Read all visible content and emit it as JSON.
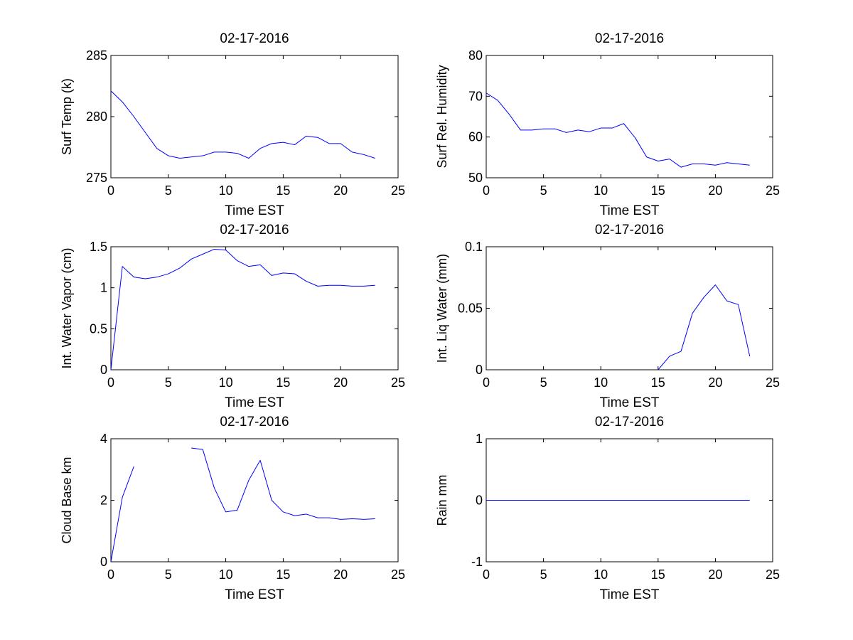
{
  "figure": {
    "background": "#ffffff",
    "line_color": "#0000ff",
    "axes_color": "#000000"
  },
  "chart_data": [
    {
      "type": "line",
      "id": "surf-temp",
      "title": "02-17-2016",
      "xlabel": "Time EST",
      "ylabel": "Surf Temp (k)",
      "xlim": [
        0,
        25
      ],
      "ylim": [
        275,
        285
      ],
      "xticks": [
        0,
        5,
        10,
        15,
        20,
        25
      ],
      "yticks": [
        275,
        280,
        285
      ],
      "series": [
        {
          "name": "Surf Temp (k)",
          "x": [
            0,
            1,
            2,
            3,
            4,
            5,
            6,
            7,
            8,
            9,
            10,
            11,
            12,
            13,
            14,
            15,
            16,
            17,
            18,
            19,
            20,
            21,
            22,
            23
          ],
          "y": [
            282.1,
            281.2,
            280.0,
            278.7,
            277.4,
            276.8,
            276.6,
            276.7,
            276.8,
            277.1,
            277.1,
            277.0,
            276.6,
            277.4,
            277.8,
            277.9,
            277.7,
            278.4,
            278.3,
            277.8,
            277.8,
            277.1,
            276.9,
            276.6
          ]
        }
      ]
    },
    {
      "type": "line",
      "id": "surf-rh",
      "title": "02-17-2016",
      "xlabel": "Time EST",
      "ylabel": "Surf Rel. Humidity",
      "xlim": [
        0,
        25
      ],
      "ylim": [
        50,
        80
      ],
      "xticks": [
        0,
        5,
        10,
        15,
        20,
        25
      ],
      "yticks": [
        50,
        60,
        70,
        80
      ],
      "series": [
        {
          "name": "Surf Rel. Humidity",
          "x": [
            0,
            1,
            2,
            3,
            4,
            5,
            6,
            7,
            8,
            9,
            10,
            11,
            12,
            13,
            14,
            15,
            16,
            17,
            18,
            19,
            20,
            21,
            22,
            23
          ],
          "y": [
            70.8,
            69.0,
            65.6,
            61.7,
            61.7,
            62.0,
            62.0,
            61.1,
            61.7,
            61.3,
            62.2,
            62.2,
            63.3,
            59.8,
            55.1,
            54.1,
            54.6,
            52.6,
            53.4,
            53.4,
            53.1,
            53.7,
            53.4,
            53.1
          ]
        }
      ]
    },
    {
      "type": "line",
      "id": "int-water-vapor",
      "title": "02-17-2016",
      "xlabel": "Time EST",
      "ylabel": "Int. Water Vapor (cm)",
      "xlim": [
        0,
        25
      ],
      "ylim": [
        0,
        1.5
      ],
      "xticks": [
        0,
        5,
        10,
        15,
        20,
        25
      ],
      "yticks": [
        0,
        0.5,
        1,
        1.5
      ],
      "series": [
        {
          "name": "Int. Water Vapor (cm)",
          "x": [
            0,
            1,
            2,
            3,
            4,
            5,
            6,
            7,
            8,
            9,
            10,
            11,
            12,
            13,
            14,
            15,
            16,
            17,
            18,
            19,
            20,
            21,
            22,
            23
          ],
          "y": [
            0.0,
            1.26,
            1.13,
            1.11,
            1.13,
            1.17,
            1.24,
            1.35,
            1.41,
            1.47,
            1.46,
            1.33,
            1.26,
            1.28,
            1.15,
            1.18,
            1.17,
            1.08,
            1.02,
            1.03,
            1.03,
            1.02,
            1.02,
            1.03
          ]
        }
      ]
    },
    {
      "type": "line",
      "id": "int-liq-water",
      "title": "02-17-2016",
      "xlabel": "Time EST",
      "ylabel": "Int. Liq Water (mm)",
      "xlim": [
        0,
        25
      ],
      "ylim": [
        0,
        0.1
      ],
      "xticks": [
        0,
        5,
        10,
        15,
        20,
        25
      ],
      "yticks": [
        0,
        0.05,
        0.1
      ],
      "series": [
        {
          "name": "Int. Liq Water (mm)",
          "x": [
            15,
            16,
            17,
            18,
            19,
            20,
            21,
            22,
            23
          ],
          "y": [
            0.0,
            0.011,
            0.015,
            0.046,
            0.059,
            0.069,
            0.056,
            0.053,
            0.011
          ]
        }
      ]
    },
    {
      "type": "line",
      "id": "cloud-base",
      "title": "02-17-2016",
      "xlabel": "Time EST",
      "ylabel": "Cloud Base km",
      "xlim": [
        0,
        25
      ],
      "ylim": [
        0,
        4
      ],
      "xticks": [
        0,
        5,
        10,
        15,
        20,
        25
      ],
      "yticks": [
        0,
        2,
        4
      ],
      "series": [
        {
          "name": "Cloud Base km",
          "x": [
            0,
            1,
            2,
            3,
            4,
            5,
            6,
            7,
            8,
            9,
            10,
            11,
            12,
            13,
            14,
            15,
            16,
            17,
            18,
            19,
            20,
            21,
            22,
            23
          ],
          "y": [
            0.0,
            2.1,
            3.1,
            null,
            null,
            null,
            null,
            3.7,
            3.65,
            2.4,
            1.62,
            1.68,
            2.65,
            3.3,
            2.0,
            1.62,
            1.5,
            1.55,
            1.43,
            1.43,
            1.38,
            1.4,
            1.38,
            1.4
          ]
        }
      ]
    },
    {
      "type": "line",
      "id": "rain",
      "title": "02-17-2016",
      "xlabel": "Time EST",
      "ylabel": "Rain mm",
      "xlim": [
        0,
        25
      ],
      "ylim": [
        -1,
        1
      ],
      "xticks": [
        0,
        5,
        10,
        15,
        20,
        25
      ],
      "yticks": [
        -1,
        0,
        1
      ],
      "series": [
        {
          "name": "Rain mm",
          "x": [
            0,
            1,
            2,
            3,
            4,
            5,
            6,
            7,
            8,
            9,
            10,
            11,
            12,
            13,
            14,
            15,
            16,
            17,
            18,
            19,
            20,
            21,
            22,
            23
          ],
          "y": [
            0,
            0,
            0,
            0,
            0,
            0,
            0,
            0,
            0,
            0,
            0,
            0,
            0,
            0,
            0,
            0,
            0,
            0,
            0,
            0,
            0,
            0,
            0,
            0
          ]
        }
      ]
    }
  ]
}
